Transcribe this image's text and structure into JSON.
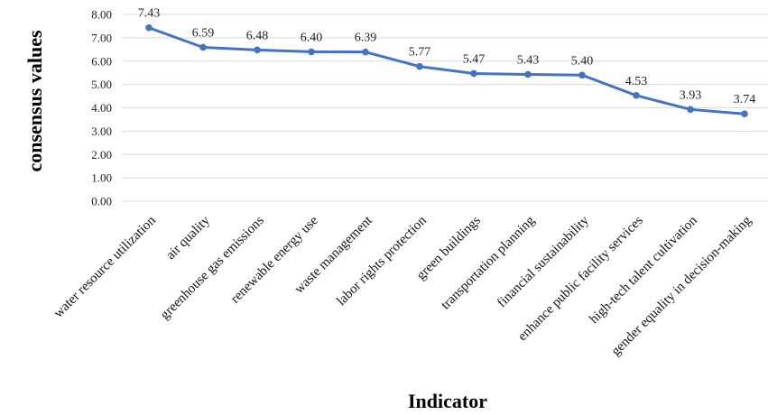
{
  "chart_data": {
    "type": "line",
    "categories": [
      "water resource utilization",
      "air quality",
      "greenhouse gas emissions",
      "renewable energy use",
      "waste management",
      "labor rights protection",
      "green buildings",
      "transportation planning",
      "financial sustainability",
      "enhance public facility services",
      "high-tech talent cultivation",
      "gender equality in decision-making"
    ],
    "series": [
      {
        "values": [
          7.43,
          6.59,
          6.48,
          6.4,
          6.39,
          5.77,
          5.47,
          5.43,
          5.4,
          4.53,
          3.93,
          3.74
        ],
        "labels": [
          "7.43",
          "6.59",
          "6.48",
          "6.40",
          "6.39",
          "5.77",
          "5.47",
          "5.43",
          "5.40",
          "4.53",
          "3.93",
          "3.74"
        ],
        "color": "#4472c4"
      }
    ],
    "title": "",
    "xlabel": "Indicator",
    "ylabel": "consensus values",
    "ylim": [
      0,
      8
    ],
    "yticks": [
      "0.00",
      "1.00",
      "2.00",
      "3.00",
      "4.00",
      "5.00",
      "6.00",
      "7.00",
      "8.00"
    ],
    "grid": true,
    "legend": "none"
  }
}
